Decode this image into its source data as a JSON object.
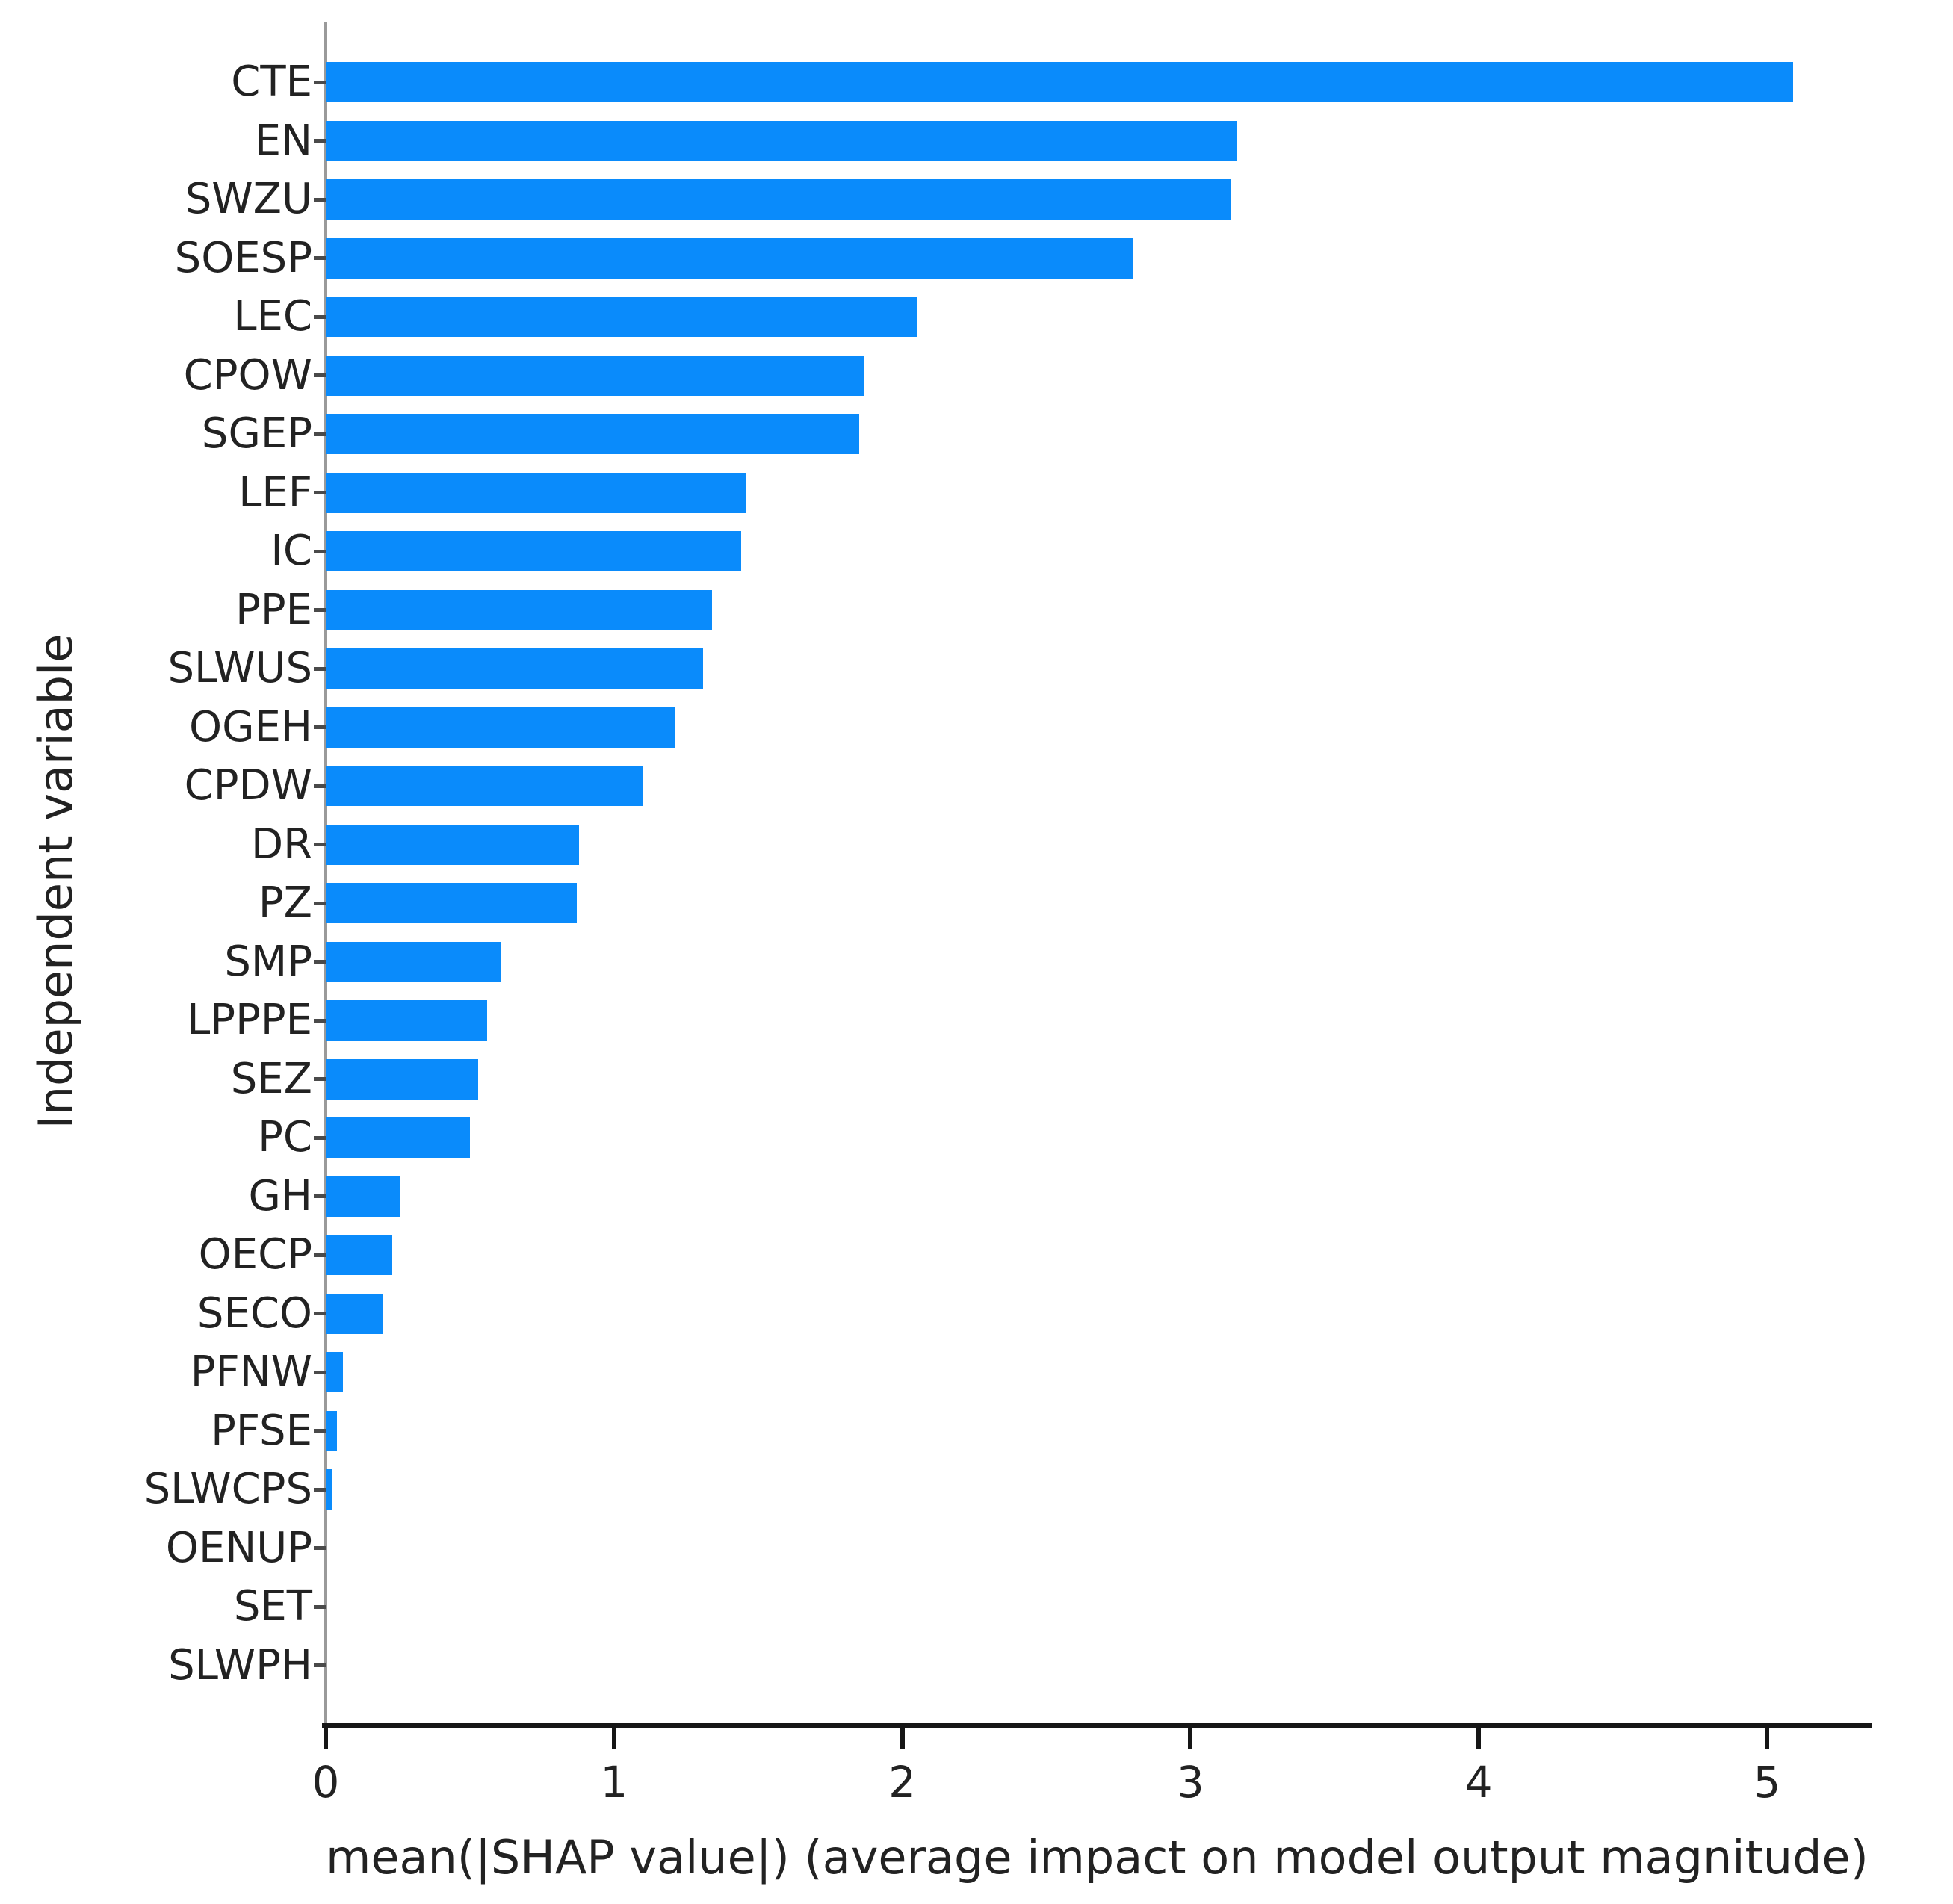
{
  "chart_data": {
    "type": "bar",
    "orientation": "horizontal",
    "title": "",
    "xlabel": "mean(|SHAP value|) (average impact on model output magnitude)",
    "ylabel": "Independent variable",
    "categories": [
      "CTE",
      "EN",
      "SWZU",
      "SOESP",
      "LEC",
      "CPOW",
      "SGEP",
      "LEF",
      "IC",
      "PPE",
      "SLWUS",
      "OGEH",
      "CPDW",
      "DR",
      "PZ",
      "SMP",
      "LPPPE",
      "SEZ",
      "PC",
      "GH",
      "OECP",
      "SECO",
      "PFNW",
      "PFSE",
      "SLWCPS",
      "OENUP",
      "SET",
      "SLWPH"
    ],
    "values": [
      5.09,
      3.16,
      3.14,
      2.8,
      2.05,
      1.87,
      1.85,
      1.46,
      1.44,
      1.34,
      1.31,
      1.21,
      1.1,
      0.88,
      0.87,
      0.61,
      0.56,
      0.53,
      0.5,
      0.26,
      0.23,
      0.2,
      0.06,
      0.04,
      0.02,
      0,
      0,
      0
    ],
    "xticks": [
      0,
      1,
      2,
      3,
      4,
      5
    ],
    "xlim": [
      0,
      5.35
    ],
    "bar_color": "#0a8bfb",
    "grid": false,
    "legend": null
  }
}
